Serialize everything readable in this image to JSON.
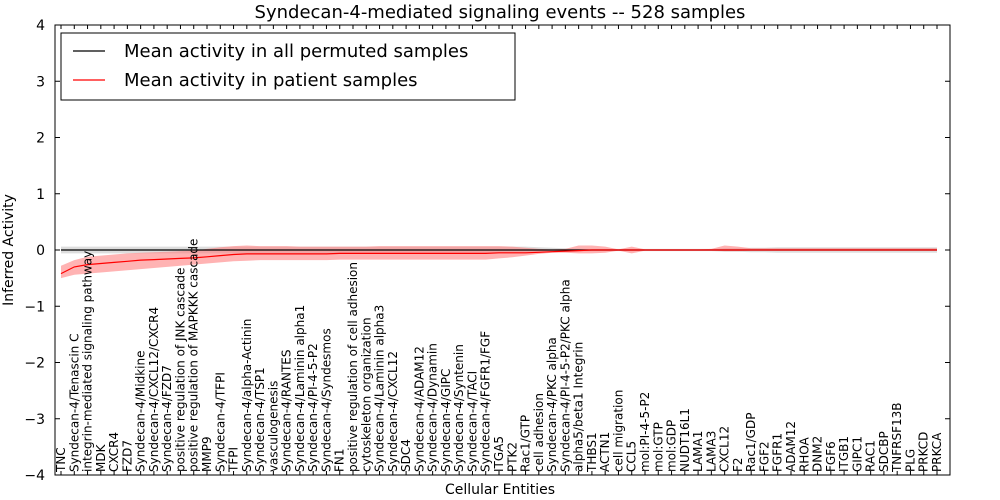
{
  "chart_data": {
    "type": "line",
    "title": "Syndecan-4-mediated signaling events -- 528 samples",
    "xlabel": "Cellular Entities",
    "ylabel": "Inferred Activity",
    "ylim": [
      -4,
      4
    ],
    "yticks": [
      "4",
      "3",
      "2",
      "1",
      "0",
      "−1",
      "−2",
      "−3",
      "−4"
    ],
    "legend_position": "top-left",
    "categories": [
      "TNC",
      "Syndecan-4/Tenascin C",
      "integrin-mediated signaling pathway",
      "MDK",
      "CXCR4",
      "FZD7",
      "Syndecan-4/Midkine",
      "Syndecan-4/CXCL12/CXCR4",
      "Syndecan-4/FZD7",
      "positive regulation of JNK cascade",
      "positive regulation of MAPKKK cascade",
      "MMP9",
      "Syndecan-4/TFPI",
      "TFPI",
      "Syndecan-4/alpha-Actinin",
      "Syndecan-4/TSP1",
      "vasculogenesis",
      "Syndecan-4/RANTES",
      "Syndecan-4/Laminin alpha1",
      "Syndecan-4/PI-4-5-P2",
      "Syndecan-4/Syndesmos",
      "FN1",
      "positive regulation of cell adhesion",
      "cytoskeleton organization",
      "Syndecan-4/Laminin alpha3",
      "Syndecan-4/CXCL12",
      "SDC4",
      "Syndecan-4/ADAM12",
      "Syndecan-4/Dynamin",
      "Syndecan-4/GIPC",
      "Syndecan-4/Syntenin",
      "Syndecan-4/TACI",
      "Syndecan-4/FGFR1/FGF",
      "ITGA5",
      "PTK2",
      "Rac1/GTP",
      "cell adhesion",
      "Syndecan-4/PKC alpha",
      "Syndecan-4/PI-4-5-P2/PKC alpha",
      "alpha5/beta1 Integrin",
      "THBS1",
      "ACTN1",
      "cell migration",
      "CCL5",
      "mol:PI-4-5-P2",
      "mol:GTP",
      "mol:GDP",
      "NUDT16L1",
      "LAMA1",
      "LAMA3",
      "CXCL12",
      "F2",
      "Rac1/GDP",
      "FGF2",
      "FGFR1",
      "ADAM12",
      "RHOA",
      "DNM2",
      "FGF6",
      "ITGB1",
      "GIPC1",
      "RAC1",
      "SDCBP",
      "TNFRSF13B",
      "PLG",
      "PRKCD",
      "PRKCA"
    ],
    "series": [
      {
        "name": "Mean activity in all permuted samples",
        "color": "#000000",
        "band_color": "#bbbbbb",
        "values": [
          0,
          0,
          0,
          0,
          0,
          0,
          0,
          0,
          0,
          0,
          0,
          0,
          0,
          0,
          0,
          0,
          0,
          0,
          0,
          0,
          0,
          0,
          0,
          0,
          0,
          0,
          0,
          0,
          0,
          0,
          0,
          0,
          0,
          0,
          0,
          0,
          0,
          0,
          0,
          0,
          0,
          0,
          0,
          0,
          0,
          0,
          0,
          0,
          0,
          0,
          0,
          0,
          0,
          0,
          0,
          0,
          0,
          0,
          0,
          0,
          0,
          0,
          0,
          0,
          0,
          0,
          0
        ],
        "band_lower": [
          -0.06,
          -0.06,
          -0.06,
          -0.06,
          -0.06,
          -0.06,
          -0.06,
          -0.06,
          -0.06,
          -0.06,
          -0.06,
          -0.06,
          -0.06,
          -0.06,
          -0.06,
          -0.06,
          -0.06,
          -0.06,
          -0.06,
          -0.06,
          -0.06,
          -0.06,
          -0.06,
          -0.06,
          -0.06,
          -0.06,
          -0.06,
          -0.06,
          -0.06,
          -0.06,
          -0.06,
          -0.06,
          -0.06,
          -0.06,
          -0.06,
          -0.06,
          -0.05,
          -0.04,
          -0.03,
          -0.02,
          -0.02,
          -0.02,
          -0.02,
          -0.02,
          -0.02,
          -0.02,
          -0.02,
          -0.02,
          -0.02,
          -0.02,
          -0.03,
          -0.03,
          -0.04,
          -0.04,
          -0.05,
          -0.05,
          -0.05,
          -0.05,
          -0.05,
          -0.05,
          -0.05,
          -0.05,
          -0.05,
          -0.05,
          -0.05,
          -0.05,
          -0.05
        ],
        "band_upper": [
          0.06,
          0.06,
          0.06,
          0.06,
          0.06,
          0.06,
          0.06,
          0.06,
          0.06,
          0.06,
          0.06,
          0.06,
          0.06,
          0.06,
          0.06,
          0.06,
          0.06,
          0.06,
          0.06,
          0.06,
          0.06,
          0.06,
          0.06,
          0.06,
          0.06,
          0.06,
          0.06,
          0.06,
          0.06,
          0.06,
          0.06,
          0.06,
          0.06,
          0.06,
          0.06,
          0.06,
          0.05,
          0.04,
          0.03,
          0.02,
          0.02,
          0.02,
          0.02,
          0.02,
          0.02,
          0.02,
          0.02,
          0.02,
          0.02,
          0.02,
          0.03,
          0.03,
          0.04,
          0.04,
          0.05,
          0.05,
          0.05,
          0.05,
          0.05,
          0.05,
          0.05,
          0.05,
          0.05,
          0.05,
          0.05,
          0.05,
          0.05
        ]
      },
      {
        "name": "Mean activity in patient samples",
        "color": "#ff0000",
        "band_color": "#ff8080",
        "values": [
          -0.42,
          -0.3,
          -0.26,
          -0.24,
          -0.22,
          -0.2,
          -0.18,
          -0.17,
          -0.16,
          -0.15,
          -0.14,
          -0.12,
          -0.1,
          -0.08,
          -0.07,
          -0.07,
          -0.07,
          -0.07,
          -0.07,
          -0.07,
          -0.07,
          -0.06,
          -0.06,
          -0.06,
          -0.06,
          -0.06,
          -0.06,
          -0.06,
          -0.06,
          -0.06,
          -0.06,
          -0.06,
          -0.06,
          -0.05,
          -0.05,
          -0.05,
          -0.04,
          -0.03,
          -0.02,
          -0.01,
          0,
          0,
          0,
          0,
          0,
          0,
          0,
          0,
          0,
          0,
          0,
          0,
          0,
          0,
          0,
          0,
          0,
          0,
          0,
          0,
          0,
          0,
          0,
          0,
          0,
          0,
          0
        ],
        "band_lower": [
          -0.5,
          -0.44,
          -0.42,
          -0.4,
          -0.38,
          -0.36,
          -0.34,
          -0.32,
          -0.3,
          -0.28,
          -0.26,
          -0.24,
          -0.22,
          -0.2,
          -0.19,
          -0.18,
          -0.18,
          -0.18,
          -0.18,
          -0.18,
          -0.18,
          -0.17,
          -0.17,
          -0.17,
          -0.17,
          -0.17,
          -0.17,
          -0.17,
          -0.17,
          -0.17,
          -0.17,
          -0.17,
          -0.17,
          -0.15,
          -0.13,
          -0.1,
          -0.07,
          -0.05,
          -0.05,
          -0.06,
          -0.06,
          -0.05,
          -0.01,
          -0.06,
          -0.01,
          -0.01,
          -0.01,
          -0.01,
          -0.01,
          -0.01,
          -0.02,
          -0.02,
          -0.01,
          -0.01,
          -0.01,
          -0.01,
          -0.01,
          -0.01,
          -0.01,
          -0.01,
          -0.01,
          -0.01,
          -0.01,
          -0.01,
          -0.01,
          -0.01,
          -0.01
        ],
        "band_upper": [
          -0.28,
          -0.18,
          -0.12,
          -0.1,
          -0.08,
          -0.06,
          -0.05,
          -0.04,
          -0.03,
          -0.02,
          -0.01,
          0.02,
          0.05,
          0.07,
          0.08,
          0.07,
          0.07,
          0.07,
          0.06,
          0.06,
          0.06,
          0.06,
          0.06,
          0.06,
          0.07,
          0.07,
          0.07,
          0.07,
          0.07,
          0.07,
          0.07,
          0.07,
          0.07,
          0.07,
          0.06,
          0.04,
          0.02,
          0.01,
          0.02,
          0.08,
          0.08,
          0.06,
          0.01,
          0.06,
          0.01,
          0.01,
          0.01,
          0.01,
          0.01,
          0.02,
          0.08,
          0.06,
          0.03,
          0.03,
          0.03,
          0.03,
          0.03,
          0.03,
          0.03,
          0.03,
          0.03,
          0.03,
          0.03,
          0.03,
          0.03,
          0.03,
          0.03
        ]
      }
    ]
  }
}
